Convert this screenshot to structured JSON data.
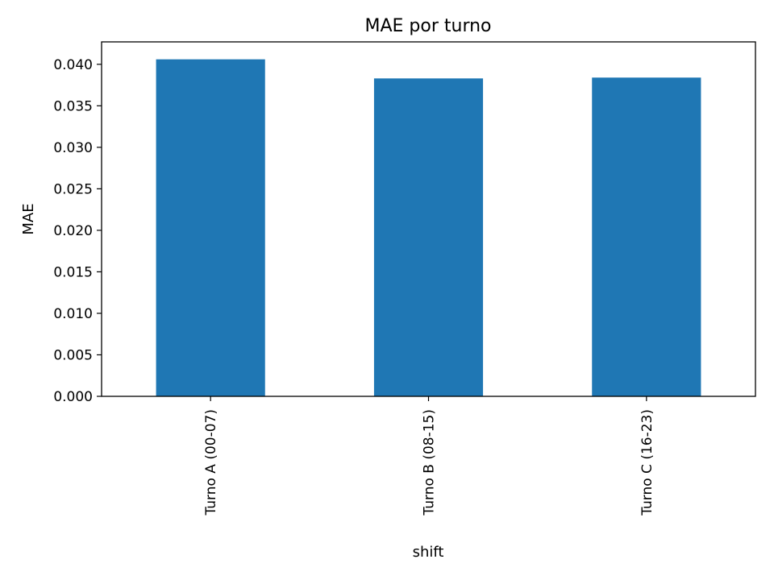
{
  "chart_data": {
    "type": "bar",
    "title": "MAE por turno",
    "xlabel": "shift",
    "ylabel": "MAE",
    "categories": [
      "Turno A (00-07)",
      "Turno B (08-15)",
      "Turno C (16-23)"
    ],
    "values": [
      0.0406,
      0.0383,
      0.0384
    ],
    "ylim": [
      0,
      0.0427
    ],
    "yticks": [
      0.0,
      0.005,
      0.01,
      0.015,
      0.02,
      0.025,
      0.03,
      0.035,
      0.04
    ],
    "ytick_labels": [
      "0.000",
      "0.005",
      "0.010",
      "0.015",
      "0.020",
      "0.025",
      "0.030",
      "0.035",
      "0.040"
    ],
    "bar_color": "#1f77b4",
    "grid": false,
    "legend": "none"
  }
}
